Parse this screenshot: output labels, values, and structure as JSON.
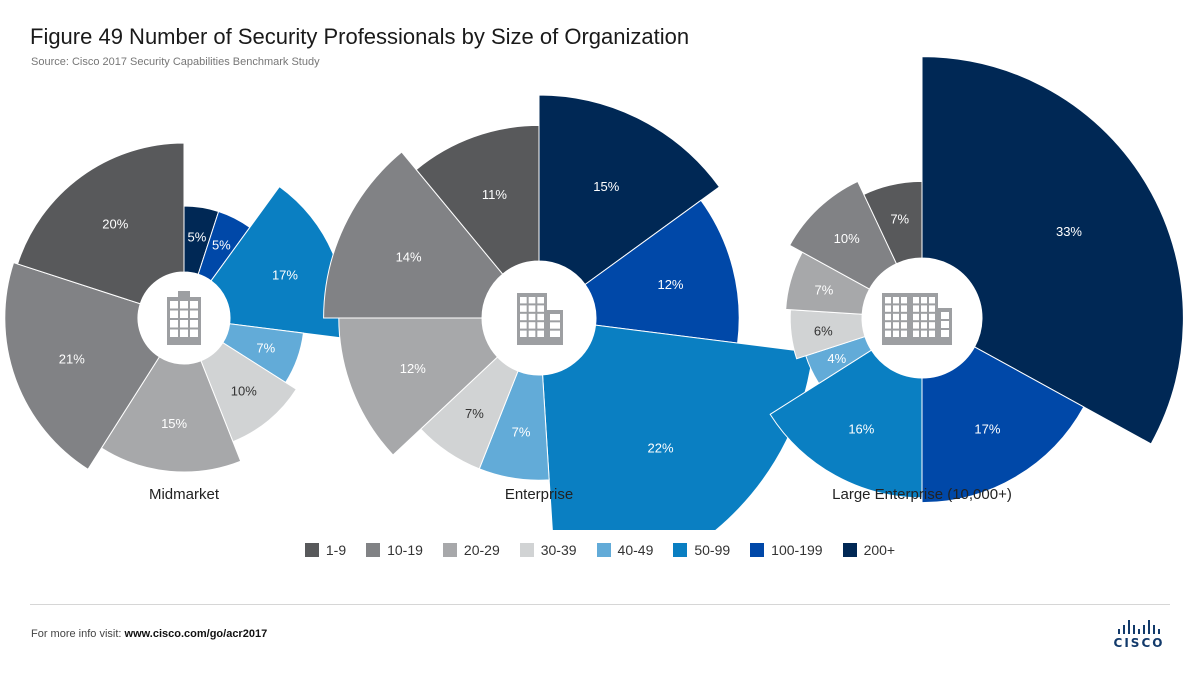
{
  "header": {
    "title": "Figure 49  Number of Security Professionals by Size of Organization",
    "subtitle": "Source: Cisco 2017 Security Capabilities Benchmark Study"
  },
  "colors": {
    "1-9": "#58595b",
    "10-19": "#818285",
    "20-29": "#a7a8aa",
    "30-39": "#d1d3d4",
    "40-49": "#62abd8",
    "50-99": "#0a7fc2",
    "100-199": "#0048a8",
    "200+": "#002855"
  },
  "legend": [
    "1-9",
    "10-19",
    "20-29",
    "30-39",
    "40-49",
    "50-99",
    "100-199",
    "200+"
  ],
  "chart_data": [
    {
      "type": "pie",
      "name": "Midmarket",
      "categories": [
        "200+",
        "100-199",
        "50-99",
        "40-49",
        "30-39",
        "20-29",
        "10-19",
        "1-9"
      ],
      "values": [
        5,
        5,
        17,
        7,
        10,
        15,
        21,
        20
      ]
    },
    {
      "type": "pie",
      "name": "Enterprise",
      "categories": [
        "200+",
        "100-199",
        "50-99",
        "40-49",
        "30-39",
        "20-29",
        "10-19",
        "1-9"
      ],
      "values": [
        15,
        12,
        22,
        7,
        7,
        12,
        14,
        11
      ]
    },
    {
      "type": "pie",
      "name": "Large Enterprise (10,000+)",
      "categories": [
        "200+",
        "100-199",
        "50-99",
        "40-49",
        "30-39",
        "20-29",
        "10-19",
        "1-9"
      ],
      "values": [
        33,
        17,
        16,
        4,
        6,
        7,
        10,
        7
      ]
    }
  ],
  "footer": {
    "prefix": "For more info visit: ",
    "link": "www.cisco.com/go/acr2017"
  },
  "logo": {
    "text": "CISCO",
    "icon": "cisco-bridge-icon"
  },
  "center_icons": [
    "building-icon",
    "building-icon",
    "office-buildings-icon"
  ]
}
